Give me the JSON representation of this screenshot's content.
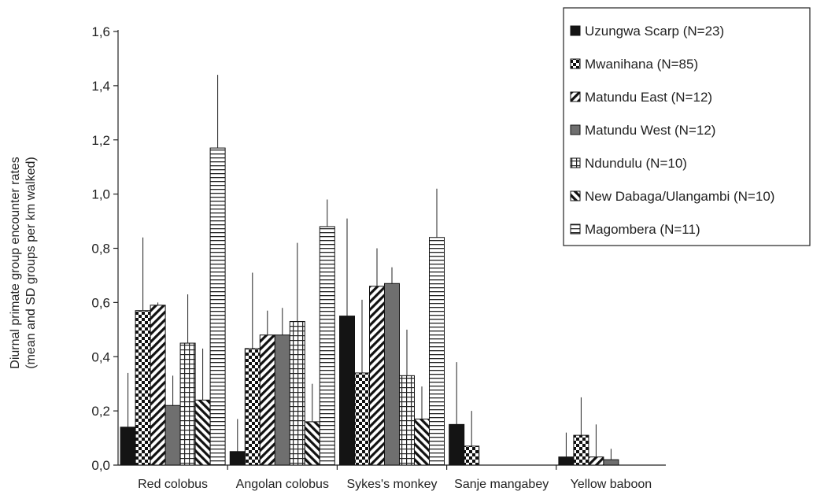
{
  "chart_data": {
    "type": "bar",
    "ylabel": [
      "Diurnal primate group encounter rates",
      "(mean and SD groups per km walked)"
    ],
    "ylim": [
      0,
      1.6
    ],
    "yticks": [
      "0,0",
      "0,2",
      "0,4",
      "0,6",
      "0,8",
      "1,0",
      "1,2",
      "1,4",
      "1,6"
    ],
    "grid": false,
    "legend_position": "top-right",
    "categories": [
      "Red colobus",
      "Angolan colobus",
      "Sykes's monkey",
      "Sanje mangabey",
      "Yellow baboon"
    ],
    "series": [
      {
        "name": "Uzungwa Scarp (N=23)",
        "pattern": "solid-black",
        "values": [
          0.14,
          0.05,
          0.55,
          0.15,
          0.03
        ],
        "sd": [
          0.2,
          0.12,
          0.36,
          0.23,
          0.09
        ]
      },
      {
        "name": "Mwanihana (N=85)",
        "pattern": "checker",
        "values": [
          0.57,
          0.43,
          0.34,
          0.07,
          0.11
        ],
        "sd": [
          0.27,
          0.28,
          0.27,
          0.13,
          0.14
        ]
      },
      {
        "name": "Matundu East (N=12)",
        "pattern": "diagonal",
        "values": [
          0.59,
          0.48,
          0.66,
          0,
          0.03
        ],
        "sd": [
          0.01,
          0.09,
          0.14,
          0,
          0.12
        ]
      },
      {
        "name": "Matundu West (N=12)",
        "pattern": "solid-gray",
        "values": [
          0.22,
          0.48,
          0.67,
          0,
          0.02
        ],
        "sd": [
          0.11,
          0.1,
          0.06,
          0,
          0.04
        ]
      },
      {
        "name": "Ndundulu (N=10)",
        "pattern": "grid",
        "values": [
          0.45,
          0.53,
          0.33,
          0,
          0
        ],
        "sd": [
          0.18,
          0.29,
          0.17,
          0,
          0
        ]
      },
      {
        "name": "New Dabaga/Ulangambi (N=10)",
        "pattern": "back-diagonal",
        "values": [
          0.24,
          0.16,
          0.17,
          0,
          0
        ],
        "sd": [
          0.19,
          0.14,
          0.12,
          0,
          0
        ]
      },
      {
        "name": "Magombera (N=11)",
        "pattern": "horizontal",
        "values": [
          1.17,
          0.88,
          0.84,
          0,
          0
        ],
        "sd": [
          0.27,
          0.1,
          0.18,
          0,
          0
        ]
      }
    ]
  }
}
